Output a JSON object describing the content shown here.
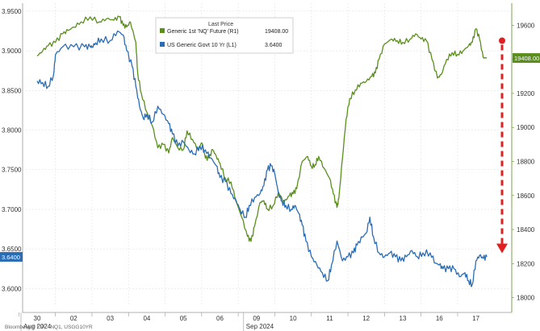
{
  "chart_data": {
    "type": "line",
    "x_ticks": [
      "30",
      "02",
      "03",
      "04",
      "05",
      "06",
      "09",
      "10",
      "11",
      "12",
      "13",
      "16",
      "17"
    ],
    "x_months": [
      {
        "label": "Aug 2024",
        "at": "30"
      },
      {
        "label": "Sep 2024",
        "at": "09"
      }
    ],
    "y_left": {
      "ticks": [
        "3.9500",
        "3.9000",
        "3.8500",
        "3.8000",
        "3.7500",
        "3.7000",
        "3.6500",
        "3.6000"
      ],
      "lim": [
        3.58,
        3.96
      ]
    },
    "y_right": {
      "ticks": [
        "19600",
        "19400",
        "19200",
        "19000",
        "18800",
        "18600",
        "18400",
        "18200",
        "18000"
      ],
      "lim": [
        17960,
        19730
      ]
    },
    "legend": {
      "header": "Last Price",
      "items": [
        {
          "name": "Generic 1st 'NQ' Future  (R1)",
          "value": "19408.00",
          "color": "#5a8f1c",
          "axis": "right"
        },
        {
          "name": "US Generic Govt 10 Yr  (L1)",
          "value": "3.6400",
          "color": "#2a6db5",
          "axis": "left"
        }
      ],
      "placement": "top-center"
    },
    "badges": {
      "left": "3.6400",
      "right": "19408.00"
    },
    "annotation": {
      "type": "dashed-arrow",
      "color": "#e02020",
      "from_right_value": 19510,
      "to_right_value": 18270
    },
    "series": [
      {
        "name": "Generic 1st 'NQ' Future  (R1)",
        "axis": "right",
        "color": "#5a8f1c",
        "points": [
          [
            0.0,
            19420
          ],
          [
            0.15,
            19450
          ],
          [
            0.3,
            19480
          ],
          [
            0.5,
            19500
          ],
          [
            0.7,
            19550
          ],
          [
            0.85,
            19570
          ],
          [
            1.0,
            19590
          ],
          [
            1.2,
            19620
          ],
          [
            1.45,
            19650
          ],
          [
            1.7,
            19620
          ],
          [
            1.9,
            19640
          ],
          [
            2.1,
            19630
          ],
          [
            2.25,
            19650
          ],
          [
            2.35,
            19600
          ],
          [
            2.45,
            19590
          ],
          [
            2.55,
            19620
          ],
          [
            2.7,
            19500
          ],
          [
            2.75,
            19320
          ],
          [
            2.85,
            19200
          ],
          [
            3.0,
            19090
          ],
          [
            3.15,
            19010
          ],
          [
            3.3,
            18880
          ],
          [
            3.45,
            18900
          ],
          [
            3.6,
            18850
          ],
          [
            3.7,
            18940
          ],
          [
            3.85,
            18880
          ],
          [
            4.0,
            18870
          ],
          [
            4.1,
            18980
          ],
          [
            4.25,
            18930
          ],
          [
            4.4,
            18870
          ],
          [
            4.5,
            18910
          ],
          [
            4.6,
            18820
          ],
          [
            4.7,
            18820
          ],
          [
            4.8,
            18870
          ],
          [
            4.9,
            18830
          ],
          [
            5.0,
            18790
          ],
          [
            5.15,
            18700
          ],
          [
            5.3,
            18680
          ],
          [
            5.45,
            18560
          ],
          [
            5.6,
            18470
          ],
          [
            5.75,
            18360
          ],
          [
            5.85,
            18330
          ],
          [
            5.95,
            18420
          ],
          [
            6.1,
            18560
          ],
          [
            6.2,
            18570
          ],
          [
            6.3,
            18520
          ],
          [
            6.45,
            18540
          ],
          [
            6.6,
            18620
          ],
          [
            6.75,
            18560
          ],
          [
            6.9,
            18600
          ],
          [
            7.0,
            18610
          ],
          [
            7.1,
            18640
          ],
          [
            7.25,
            18800
          ],
          [
            7.4,
            18830
          ],
          [
            7.5,
            18770
          ],
          [
            7.6,
            18780
          ],
          [
            7.7,
            18830
          ],
          [
            7.85,
            18760
          ],
          [
            8.0,
            18700
          ],
          [
            8.1,
            18610
          ],
          [
            8.2,
            18530
          ],
          [
            8.25,
            18580
          ],
          [
            8.35,
            18820
          ],
          [
            8.45,
            19050
          ],
          [
            8.55,
            19170
          ],
          [
            8.7,
            19220
          ],
          [
            8.85,
            19260
          ],
          [
            9.0,
            19270
          ],
          [
            9.15,
            19300
          ],
          [
            9.25,
            19320
          ],
          [
            9.35,
            19400
          ],
          [
            9.5,
            19490
          ],
          [
            9.7,
            19520
          ],
          [
            9.85,
            19510
          ],
          [
            10.0,
            19500
          ],
          [
            10.2,
            19520
          ],
          [
            10.35,
            19550
          ],
          [
            10.5,
            19520
          ],
          [
            10.65,
            19510
          ],
          [
            10.8,
            19400
          ],
          [
            10.95,
            19290
          ],
          [
            11.05,
            19310
          ],
          [
            11.2,
            19400
          ],
          [
            11.35,
            19440
          ],
          [
            11.5,
            19430
          ],
          [
            11.65,
            19450
          ],
          [
            11.8,
            19480
          ],
          [
            11.9,
            19500
          ],
          [
            12.0,
            19580
          ],
          [
            12.1,
            19520
          ],
          [
            12.2,
            19410
          ],
          [
            12.3,
            19408
          ]
        ]
      },
      {
        "name": "US Generic Govt 10 Yr  (L1)",
        "axis": "left",
        "color": "#2a6db5",
        "points": [
          [
            0.0,
            3.862
          ],
          [
            0.15,
            3.86
          ],
          [
            0.3,
            3.855
          ],
          [
            0.45,
            3.87
          ],
          [
            0.5,
            3.895
          ],
          [
            0.7,
            3.905
          ],
          [
            1.0,
            3.905
          ],
          [
            1.3,
            3.905
          ],
          [
            1.45,
            3.905
          ],
          [
            1.5,
            3.905
          ],
          [
            1.6,
            3.91
          ],
          [
            1.75,
            3.915
          ],
          [
            2.0,
            3.913
          ],
          [
            2.2,
            3.925
          ],
          [
            2.35,
            3.92
          ],
          [
            2.45,
            3.9
          ],
          [
            2.6,
            3.88
          ],
          [
            2.7,
            3.855
          ],
          [
            2.8,
            3.83
          ],
          [
            2.9,
            3.815
          ],
          [
            3.0,
            3.82
          ],
          [
            3.15,
            3.81
          ],
          [
            3.3,
            3.83
          ],
          [
            3.45,
            3.82
          ],
          [
            3.6,
            3.808
          ],
          [
            3.7,
            3.795
          ],
          [
            3.85,
            3.78
          ],
          [
            4.0,
            3.785
          ],
          [
            4.15,
            3.775
          ],
          [
            4.3,
            3.77
          ],
          [
            4.45,
            3.78
          ],
          [
            4.6,
            3.775
          ],
          [
            4.75,
            3.765
          ],
          [
            4.9,
            3.755
          ],
          [
            5.0,
            3.74
          ],
          [
            5.15,
            3.735
          ],
          [
            5.3,
            3.72
          ],
          [
            5.45,
            3.71
          ],
          [
            5.55,
            3.7
          ],
          [
            5.7,
            3.69
          ],
          [
            5.8,
            3.705
          ],
          [
            5.95,
            3.715
          ],
          [
            6.1,
            3.72
          ],
          [
            6.2,
            3.73
          ],
          [
            6.3,
            3.75
          ],
          [
            6.4,
            3.755
          ],
          [
            6.5,
            3.745
          ],
          [
            6.6,
            3.72
          ],
          [
            6.7,
            3.71
          ],
          [
            6.8,
            3.705
          ],
          [
            6.95,
            3.7
          ],
          [
            7.05,
            3.705
          ],
          [
            7.15,
            3.695
          ],
          [
            7.25,
            3.68
          ],
          [
            7.35,
            3.66
          ],
          [
            7.5,
            3.64
          ],
          [
            7.65,
            3.63
          ],
          [
            7.8,
            3.62
          ],
          [
            7.95,
            3.61
          ],
          [
            8.05,
            3.63
          ],
          [
            8.2,
            3.66
          ],
          [
            8.35,
            3.635
          ],
          [
            8.5,
            3.64
          ],
          [
            8.65,
            3.645
          ],
          [
            8.75,
            3.655
          ],
          [
            8.9,
            3.665
          ],
          [
            9.0,
            3.67
          ],
          [
            9.1,
            3.69
          ],
          [
            9.2,
            3.665
          ],
          [
            9.35,
            3.645
          ],
          [
            9.5,
            3.64
          ],
          [
            9.65,
            3.645
          ],
          [
            9.8,
            3.64
          ],
          [
            9.95,
            3.635
          ],
          [
            10.1,
            3.64
          ],
          [
            10.25,
            3.648
          ],
          [
            10.4,
            3.64
          ],
          [
            10.55,
            3.645
          ],
          [
            10.75,
            3.645
          ],
          [
            10.9,
            3.632
          ],
          [
            11.0,
            3.63
          ],
          [
            11.1,
            3.625
          ],
          [
            11.25,
            3.625
          ],
          [
            11.4,
            3.625
          ],
          [
            11.55,
            3.615
          ],
          [
            11.7,
            3.62
          ],
          [
            11.8,
            3.61
          ],
          [
            11.9,
            3.605
          ],
          [
            12.0,
            3.635
          ],
          [
            12.1,
            3.642
          ],
          [
            12.2,
            3.638
          ],
          [
            12.3,
            3.64
          ]
        ]
      }
    ],
    "grid": true
  },
  "footer": "Bloomberg ® L.P.  ·  NQ1, USGG10YR"
}
